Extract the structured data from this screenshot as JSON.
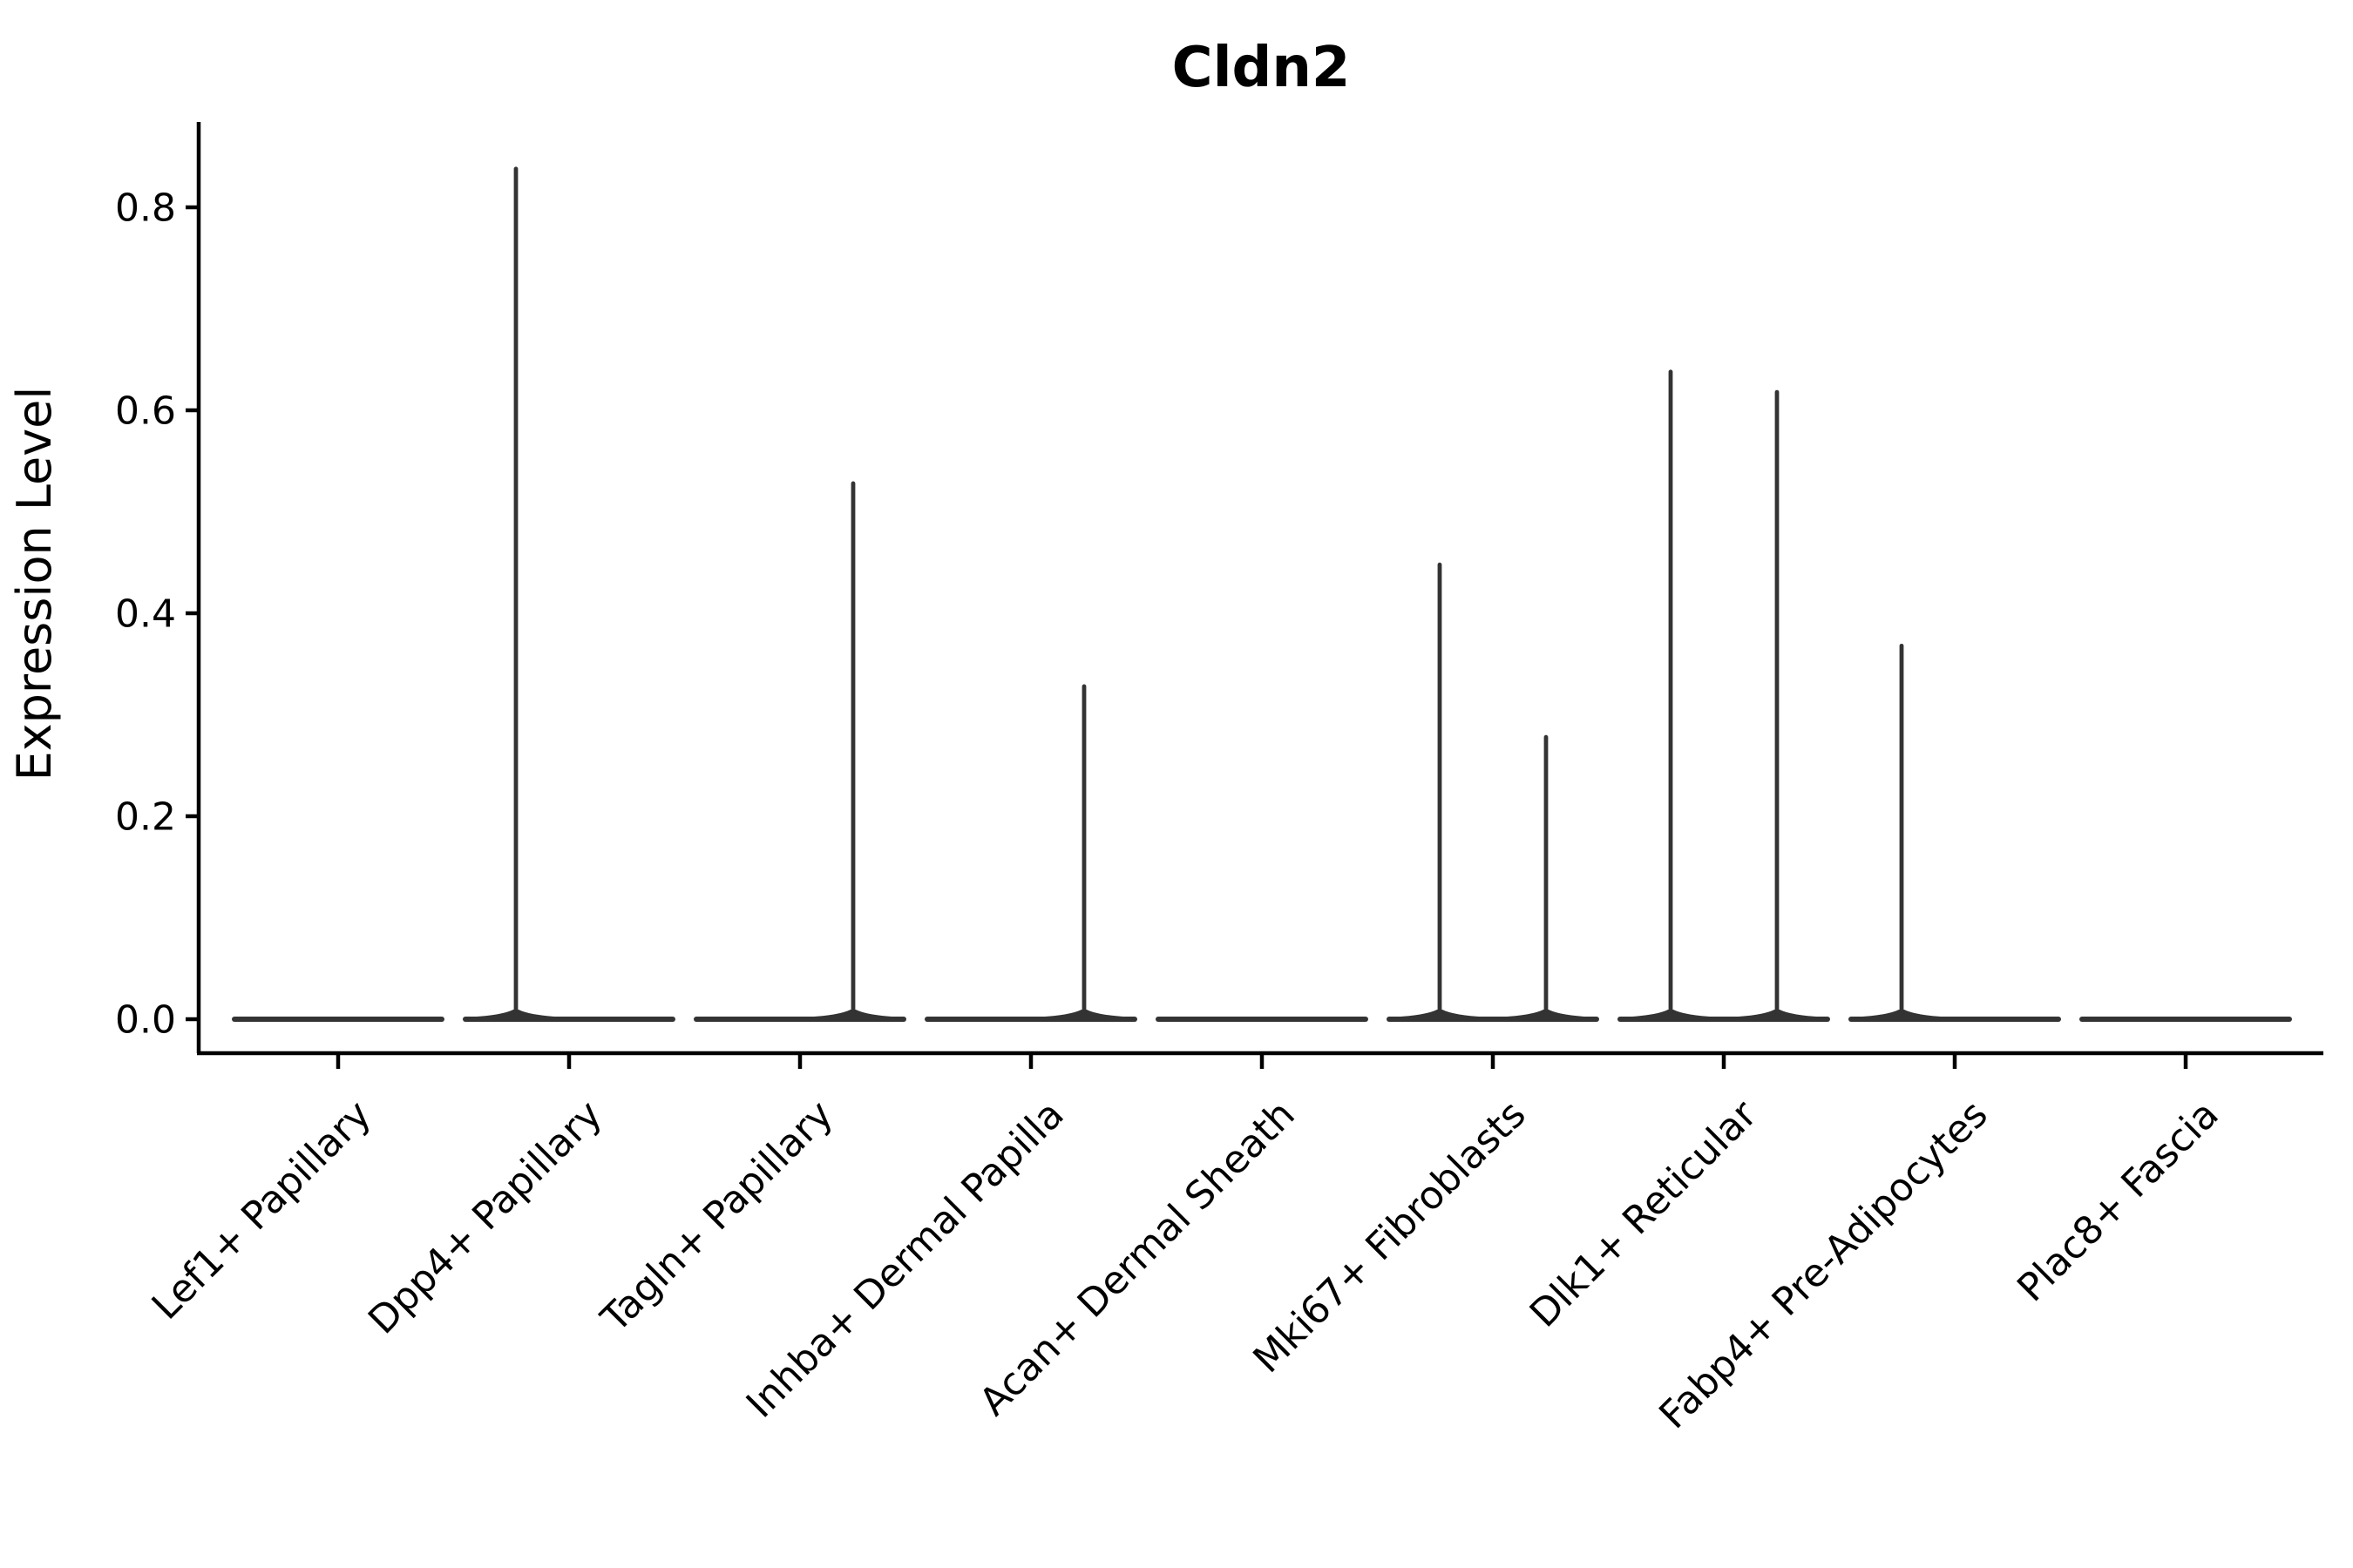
{
  "chart_data": {
    "type": "violin",
    "title": "Cldn2",
    "ylabel": "Expression Level",
    "xlabel": "",
    "grid": false,
    "x_tick_rotation": 45,
    "yticks": [
      0.0,
      0.2,
      0.4,
      0.6,
      0.8
    ],
    "ylim": [
      -0.04,
      0.885
    ],
    "categories": [
      "Lef1+ Papillary",
      "Dpp4+ Papillary",
      "Tagln+ Papillary",
      "Inhba+ Dermal Papilla",
      "Acan+ Dermal Sheath",
      "Mki67+ Fibroblasts",
      "Dlk1+ Reticular",
      "Fabp4+ Pre-Adipocytes",
      "Plac8+ Fascia"
    ],
    "violins": [
      {
        "category": "Lef1+ Papillary",
        "baseline_value": 0,
        "spikes": []
      },
      {
        "category": "Dpp4+ Papillary",
        "baseline_value": 0,
        "spikes": [
          {
            "side": "left",
            "max": 0.84
          }
        ]
      },
      {
        "category": "Tagln+ Papillary",
        "baseline_value": 0,
        "spikes": [
          {
            "side": "right",
            "max": 0.53
          }
        ]
      },
      {
        "category": "Inhba+ Dermal Papilla",
        "baseline_value": 0,
        "spikes": [
          {
            "side": "right",
            "max": 0.33
          }
        ]
      },
      {
        "category": "Acan+ Dermal Sheath",
        "baseline_value": 0,
        "spikes": []
      },
      {
        "category": "Mki67+ Fibroblasts",
        "baseline_value": 0,
        "spikes": [
          {
            "side": "left",
            "max": 0.45
          },
          {
            "side": "right",
            "max": 0.28
          }
        ]
      },
      {
        "category": "Dlk1+ Reticular",
        "baseline_value": 0,
        "spikes": [
          {
            "side": "left",
            "max": 0.64
          },
          {
            "side": "right",
            "max": 0.62
          }
        ]
      },
      {
        "category": "Fabp4+ Pre-Adipocytes",
        "baseline_value": 0,
        "spikes": [
          {
            "side": "left",
            "max": 0.37
          }
        ]
      },
      {
        "category": "Plac8+ Fascia",
        "baseline_value": 0,
        "spikes": []
      }
    ],
    "colors": {
      "violin": "#333333",
      "axis": "#000000",
      "text": "#000000"
    }
  }
}
